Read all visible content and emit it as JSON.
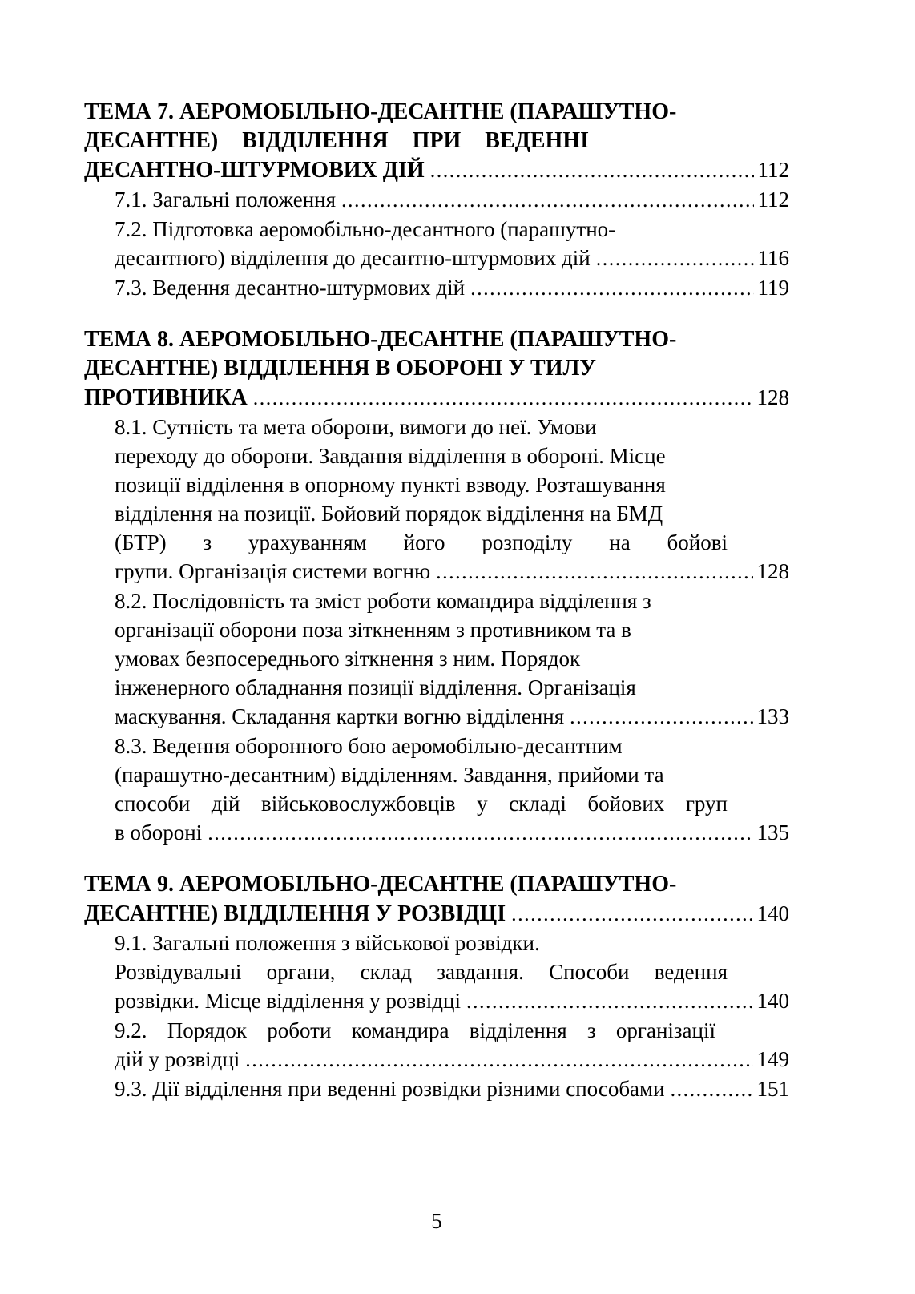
{
  "page_number": "5",
  "toc": {
    "sections": [
      {
        "id": "tema-7",
        "heading_lines": [
          "ТЕМА 7. АЕРОМОБІЛЬНО-ДЕСАНТНЕ (ПАРАШУТНО-",
          "ДЕСАНТНЕ) ВІДДІЛЕННЯ ПРИ ВЕДЕННІ"
        ],
        "heading_end": {
          "text": "ДЕСАНТНО-ШТУРМОВИХ ДІЙ",
          "page": "112"
        },
        "items": [
          {
            "lines": [],
            "end": {
              "text": "7.1. Загальні положення",
              "page": "112"
            }
          },
          {
            "lines": [
              "7.2. Підготовка аеромобільно-десантного (парашутно-"
            ],
            "end": {
              "text": "десантного) відділення до десантно-штурмових дій",
              "page": "116"
            }
          },
          {
            "lines": [],
            "end": {
              "text": "7.3. Ведення десантно-штурмових дій",
              "page": "119"
            }
          }
        ]
      },
      {
        "id": "tema-8",
        "heading_lines": [
          "ТЕМА 8. АЕРОМОБІЛЬНО-ДЕСАНТНЕ (ПАРАШУТНО-",
          "ДЕСАНТНЕ) ВІДДІЛЕННЯ В ОБОРОНІ У ТИЛУ"
        ],
        "heading_end": {
          "text": "ПРОТИВНИКА",
          "page": "128"
        },
        "items": [
          {
            "lines": [
              "8.1. Сутність та мета оборони, вимоги до неї. Умови",
              "переходу до оборони. Завдання відділення в обороні. Місце",
              "позиції відділення в опорному пункті взводу. Розташування",
              "відділення на позиції. Бойовий порядок відділення на БМД",
              "(БТР) з урахуванням його розподілу на бойові"
            ],
            "end": {
              "text": "групи. Організація системи вогню",
              "page": "128"
            }
          },
          {
            "lines": [
              "8.2. Послідовність та зміст роботи командира відділення з",
              "організації оборони поза зіткненням з противником та в",
              "умовах безпосереднього зіткнення з ним. Порядок",
              "інженерного обладнання позиції відділення. Організація"
            ],
            "end": {
              "text": "маскування. Складання картки вогню відділення",
              "page": "133"
            }
          },
          {
            "lines": [
              "8.3. Ведення оборонного бою аеромобільно-десантним",
              "(парашутно-десантним) відділенням. Завдання, прийоми та",
              "способи дій військовослужбовців у складі бойових груп"
            ],
            "end": {
              "text": "в обороні",
              "page": "135"
            }
          }
        ]
      },
      {
        "id": "tema-9",
        "heading_lines": [
          "ТЕМА 9. АЕРОМОБІЛЬНО-ДЕСАНТНЕ (ПАРАШУТНО-"
        ],
        "heading_end": {
          "text": "ДЕСАНТНЕ) ВІДДІЛЕННЯ У РОЗВІДЦІ",
          "page": "140"
        },
        "items": [
          {
            "lines": [
              "9.1. Загальні положення з військової розвідки.",
              "Розвідувальні органи, склад завдання. Способи ведення"
            ],
            "end": {
              "text": "розвідки. Місце відділення у розвідці",
              "page": "140"
            }
          },
          {
            "lines": [
              "9.2. Порядок роботи командира відділення з організації"
            ],
            "end": {
              "text": "дій у розвідці",
              "page": "149"
            }
          },
          {
            "lines": [],
            "end": {
              "text": "9.3. Дії відділення при веденні розвідки різними способами",
              "page": "151"
            }
          }
        ]
      }
    ]
  }
}
